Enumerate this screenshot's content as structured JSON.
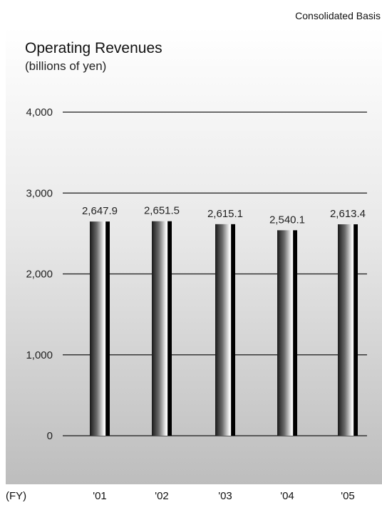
{
  "header": {
    "basis": "Consolidated Basis",
    "title": "Operating Revenues",
    "subtitle": "(billions of yen)",
    "x_unit": "(FY)"
  },
  "chart_data": {
    "type": "bar",
    "title": "Operating Revenues",
    "ylabel": "(billions of yen)",
    "xlabel": "(FY)",
    "categories": [
      "'01",
      "'02",
      "'03",
      "'04",
      "'05"
    ],
    "values": [
      2647.9,
      2651.5,
      2615.1,
      2540.1,
      2613.4
    ],
    "value_labels": [
      "2,647.9",
      "2,651.5",
      "2,615.1",
      "2,540.1",
      "2,613.4"
    ],
    "ylim": [
      0,
      4000
    ],
    "yticks": [
      0,
      1000,
      2000,
      3000,
      4000
    ],
    "ytick_labels": [
      "0",
      "1,000",
      "2,000",
      "3,000",
      "4,000"
    ],
    "grid": true,
    "legend": "none"
  }
}
